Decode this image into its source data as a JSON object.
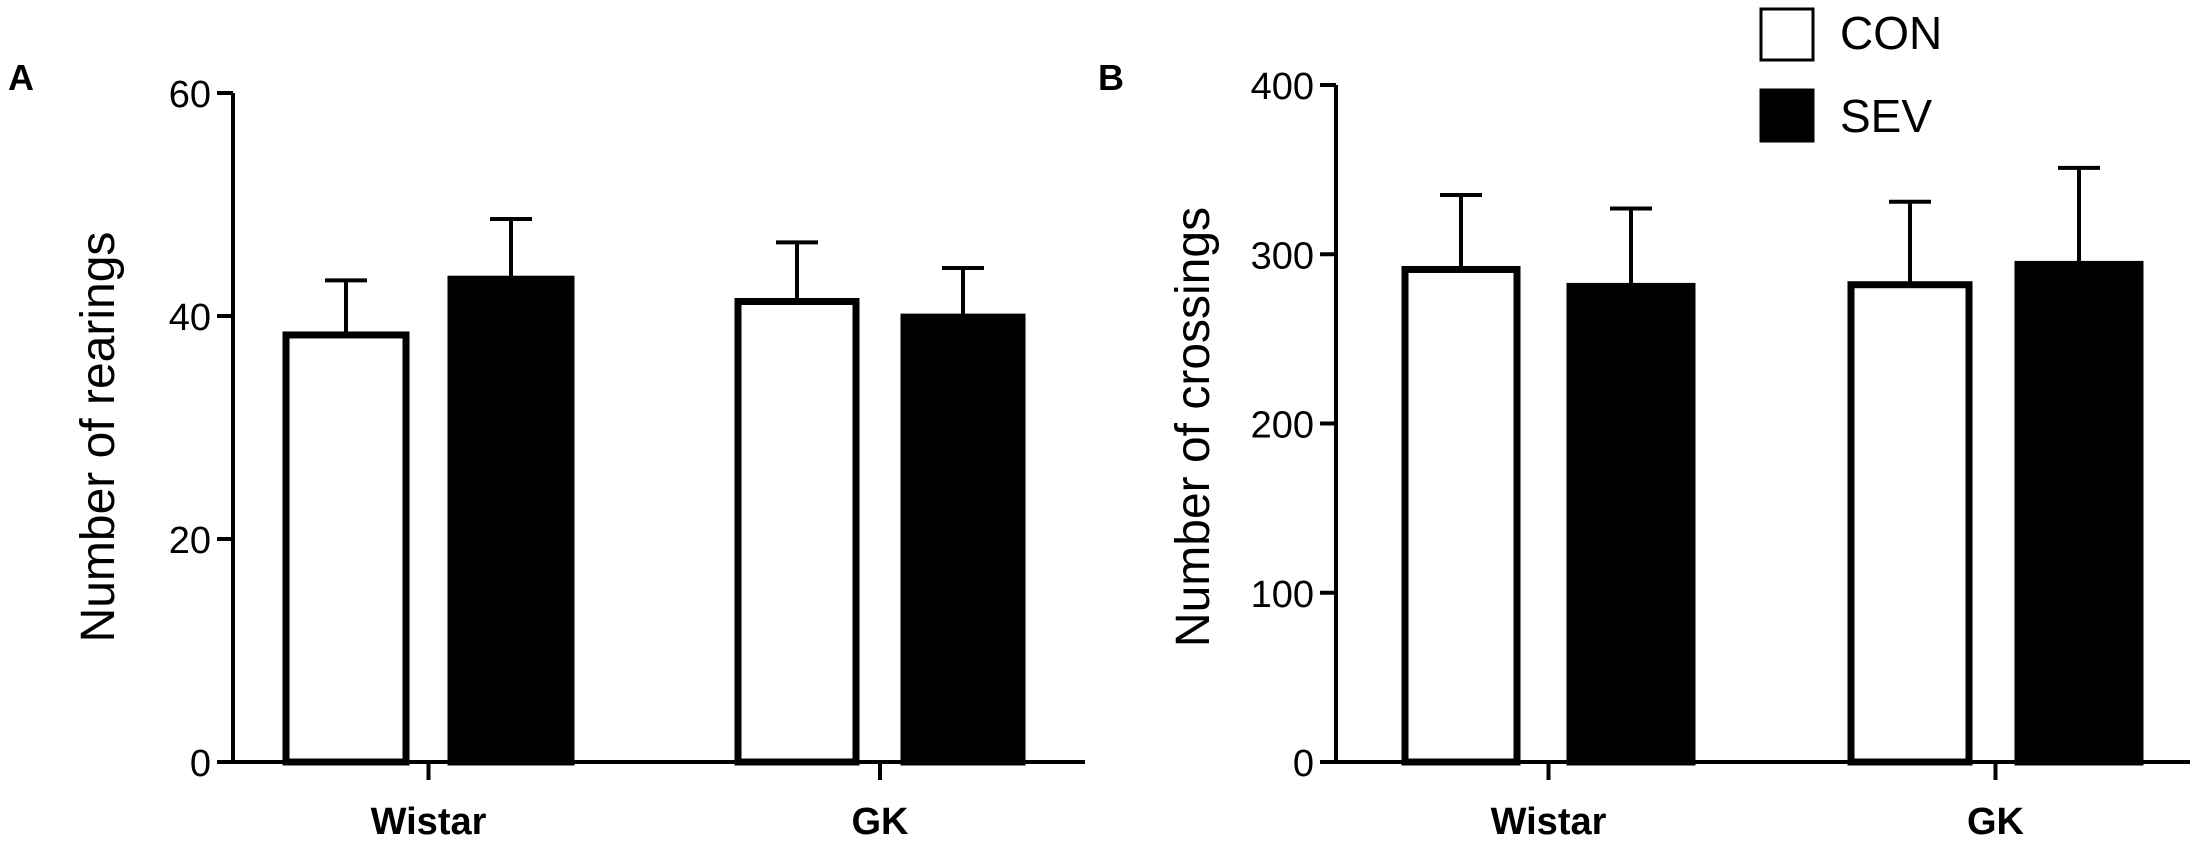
{
  "legend": {
    "placement": "top-right",
    "entries": [
      {
        "label": "CON",
        "fill": "#ffffff"
      },
      {
        "label": "SEV",
        "fill": "#000000"
      }
    ]
  },
  "colors": {
    "con": "#ffffff",
    "sev": "#000000",
    "stroke": "#000000"
  },
  "chart_data": [
    {
      "panel": "A",
      "type": "bar",
      "ylabel": "Number  of rearings",
      "xlabel": "",
      "ylim": [
        0,
        60
      ],
      "yticks": [
        "0",
        "20",
        "40",
        "60"
      ],
      "categories": [
        "Wistar",
        "GK"
      ],
      "series": [
        {
          "name": "CON",
          "values": [
            38.3,
            41.3
          ],
          "errors": [
            4.9,
            5.3
          ]
        },
        {
          "name": "SEV",
          "values": [
            43.3,
            39.9
          ],
          "errors": [
            5.4,
            4.4
          ]
        }
      ]
    },
    {
      "panel": "B",
      "type": "bar",
      "ylabel": "Number  of crossings",
      "xlabel": "",
      "ylim": [
        0,
        400
      ],
      "yticks": [
        "0",
        "100",
        "200",
        "300",
        "400"
      ],
      "categories": [
        "Wistar",
        "GK"
      ],
      "series": [
        {
          "name": "CON",
          "values": [
            291,
            282
          ],
          "errors": [
            44,
            49
          ]
        },
        {
          "name": "SEV",
          "values": [
            281,
            294
          ],
          "errors": [
            46,
            57
          ]
        }
      ]
    }
  ]
}
